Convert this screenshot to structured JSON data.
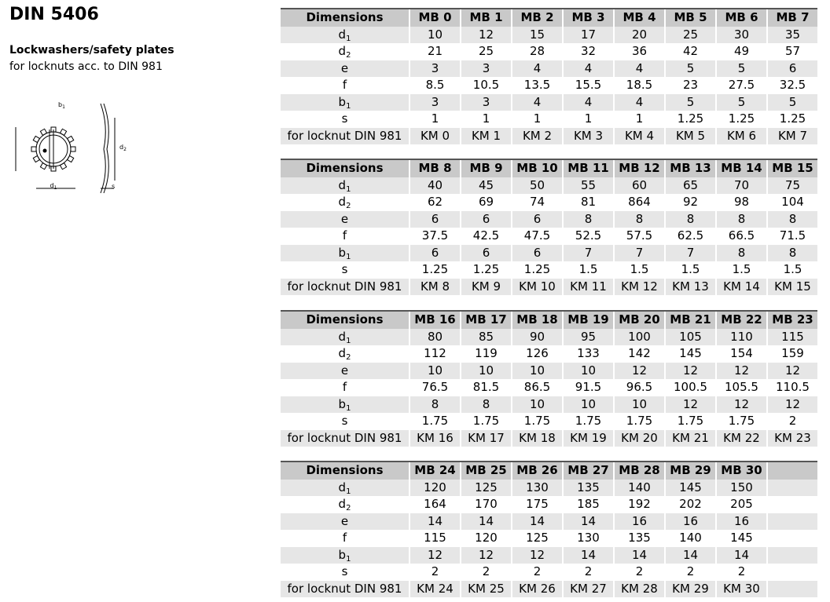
{
  "header": {
    "title": "DIN 5406",
    "subtitle": "Lockwashers/safety plates",
    "description": "for locknuts acc. to DIN 981"
  },
  "diagram": {
    "labels": {
      "d1": {
        "main": "d",
        "sub": "1"
      },
      "d2": {
        "main": "d",
        "sub": "2"
      },
      "b1": {
        "main": "b",
        "sub": "1"
      },
      "s": "s"
    }
  },
  "tables": [
    {
      "header": [
        "Dimensions",
        "MB 0",
        "MB 1",
        "MB 2",
        "MB 3",
        "MB 4",
        "MB 5",
        "MB 6",
        "MB 7"
      ],
      "rows": [
        {
          "label": {
            "main": "d",
            "sub": "1"
          },
          "cells": [
            "10",
            "12",
            "15",
            "17",
            "20",
            "25",
            "30",
            "35"
          ]
        },
        {
          "label": {
            "main": "d",
            "sub": "2"
          },
          "cells": [
            "21",
            "25",
            "28",
            "32",
            "36",
            "42",
            "49",
            "57"
          ]
        },
        {
          "label": {
            "main": "e"
          },
          "cells": [
            "3",
            "3",
            "4",
            "4",
            "4",
            "5",
            "5",
            "6"
          ]
        },
        {
          "label": {
            "main": "f"
          },
          "cells": [
            "8.5",
            "10.5",
            "13.5",
            "15.5",
            "18.5",
            "23",
            "27.5",
            "32.5"
          ]
        },
        {
          "label": {
            "main": "b",
            "sub": "1"
          },
          "cells": [
            "3",
            "3",
            "4",
            "4",
            "4",
            "5",
            "5",
            "5"
          ]
        },
        {
          "label": {
            "main": "s"
          },
          "cells": [
            "1",
            "1",
            "1",
            "1",
            "1",
            "1.25",
            "1.25",
            "1.25"
          ]
        },
        {
          "label": {
            "main": "for locknut DIN 981"
          },
          "cells": [
            "KM 0",
            "KM 1",
            "KM 2",
            "KM 3",
            "KM 4",
            "KM 5",
            "KM 6",
            "KM 7"
          ]
        }
      ]
    },
    {
      "header": [
        "Dimensions",
        "MB 8",
        "MB 9",
        "MB 10",
        "MB 11",
        "MB 12",
        "MB 13",
        "MB 14",
        "MB 15"
      ],
      "rows": [
        {
          "label": {
            "main": "d",
            "sub": "1"
          },
          "cells": [
            "40",
            "45",
            "50",
            "55",
            "60",
            "65",
            "70",
            "75"
          ]
        },
        {
          "label": {
            "main": "d",
            "sub": "2"
          },
          "cells": [
            "62",
            "69",
            "74",
            "81",
            "864",
            "92",
            "98",
            "104"
          ]
        },
        {
          "label": {
            "main": "e"
          },
          "cells": [
            "6",
            "6",
            "6",
            "8",
            "8",
            "8",
            "8",
            "8"
          ]
        },
        {
          "label": {
            "main": "f"
          },
          "cells": [
            "37.5",
            "42.5",
            "47.5",
            "52.5",
            "57.5",
            "62.5",
            "66.5",
            "71.5"
          ]
        },
        {
          "label": {
            "main": "b",
            "sub": "1"
          },
          "cells": [
            "6",
            "6",
            "6",
            "7",
            "7",
            "7",
            "8",
            "8"
          ]
        },
        {
          "label": {
            "main": "s"
          },
          "cells": [
            "1.25",
            "1.25",
            "1.25",
            "1.5",
            "1.5",
            "1.5",
            "1.5",
            "1.5"
          ]
        },
        {
          "label": {
            "main": "for locknut DIN 981"
          },
          "cells": [
            "KM 8",
            "KM 9",
            "KM 10",
            "KM 11",
            "KM 12",
            "KM 13",
            "KM 14",
            "KM 15"
          ]
        }
      ]
    },
    {
      "header": [
        "Dimensions",
        "MB 16",
        "MB 17",
        "MB 18",
        "MB 19",
        "MB 20",
        "MB 21",
        "MB 22",
        "MB 23"
      ],
      "rows": [
        {
          "label": {
            "main": "d",
            "sub": "1"
          },
          "cells": [
            "80",
            "85",
            "90",
            "95",
            "100",
            "105",
            "110",
            "115"
          ]
        },
        {
          "label": {
            "main": "d",
            "sub": "2"
          },
          "cells": [
            "112",
            "119",
            "126",
            "133",
            "142",
            "145",
            "154",
            "159"
          ]
        },
        {
          "label": {
            "main": "e"
          },
          "cells": [
            "10",
            "10",
            "10",
            "10",
            "12",
            "12",
            "12",
            "12"
          ]
        },
        {
          "label": {
            "main": "f"
          },
          "cells": [
            "76.5",
            "81.5",
            "86.5",
            "91.5",
            "96.5",
            "100.5",
            "105.5",
            "110.5"
          ]
        },
        {
          "label": {
            "main": "b",
            "sub": "1"
          },
          "cells": [
            "8",
            "8",
            "10",
            "10",
            "10",
            "12",
            "12",
            "12"
          ]
        },
        {
          "label": {
            "main": "s"
          },
          "cells": [
            "1.75",
            "1.75",
            "1.75",
            "1.75",
            "1.75",
            "1.75",
            "1.75",
            "2"
          ]
        },
        {
          "label": {
            "main": "for locknut DIN 981"
          },
          "cells": [
            "KM 16",
            "KM 17",
            "KM 18",
            "KM 19",
            "KM 20",
            "KM 21",
            "KM 22",
            "KM 23"
          ]
        }
      ]
    },
    {
      "header": [
        "Dimensions",
        "MB 24",
        "MB 25",
        "MB 26",
        "MB 27",
        "MB 28",
        "MB 29",
        "MB 30"
      ],
      "rows": [
        {
          "label": {
            "main": "d",
            "sub": "1"
          },
          "cells": [
            "120",
            "125",
            "130",
            "135",
            "140",
            "145",
            "150"
          ]
        },
        {
          "label": {
            "main": "d",
            "sub": "2"
          },
          "cells": [
            "164",
            "170",
            "175",
            "185",
            "192",
            "202",
            "205"
          ]
        },
        {
          "label": {
            "main": "e"
          },
          "cells": [
            "14",
            "14",
            "14",
            "14",
            "16",
            "16",
            "16"
          ]
        },
        {
          "label": {
            "main": "f"
          },
          "cells": [
            "115",
            "120",
            "125",
            "130",
            "135",
            "140",
            "145"
          ]
        },
        {
          "label": {
            "main": "b",
            "sub": "1"
          },
          "cells": [
            "12",
            "12",
            "12",
            "14",
            "14",
            "14",
            "14"
          ]
        },
        {
          "label": {
            "main": "s"
          },
          "cells": [
            "2",
            "2",
            "2",
            "2",
            "2",
            "2",
            "2"
          ]
        },
        {
          "label": {
            "main": "for locknut DIN 981"
          },
          "cells": [
            "KM 24",
            "KM 25",
            "KM 26",
            "KM 27",
            "KM 28",
            "KM 29",
            "KM 30"
          ]
        }
      ]
    }
  ]
}
